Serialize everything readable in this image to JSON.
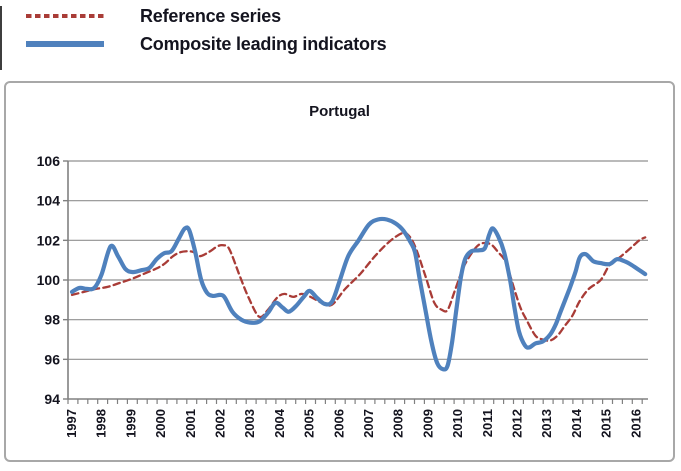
{
  "legend": {
    "items": [
      {
        "label": "Reference series",
        "color": "#a93c37",
        "style": "dashed"
      },
      {
        "label": "Composite leading indicators",
        "color": "#4f81bd",
        "style": "solid"
      }
    ]
  },
  "chart_data": {
    "type": "line",
    "title": "Portugal",
    "ylim": [
      94,
      106
    ],
    "y_ticks": [
      94,
      96,
      98,
      100,
      102,
      104,
      106
    ],
    "x_tick_years": [
      1997,
      1998,
      1999,
      2000,
      2001,
      2002,
      2003,
      2004,
      2005,
      2006,
      2007,
      2008,
      2009,
      2010,
      2011,
      2012,
      2013,
      2014,
      2015,
      2016
    ],
    "xlim": [
      1996.87,
      2016.4
    ],
    "grid": true,
    "legend_position": "top-left-outside",
    "series": [
      {
        "name": "Reference series",
        "color": "#a93c37",
        "style": "dashed",
        "points": [
          [
            1997.0,
            99.25
          ],
          [
            1997.4,
            99.4
          ],
          [
            1997.8,
            99.55
          ],
          [
            1998.2,
            99.65
          ],
          [
            1998.6,
            99.85
          ],
          [
            1999.0,
            100.05
          ],
          [
            1999.4,
            100.3
          ],
          [
            1999.8,
            100.55
          ],
          [
            2000.1,
            100.8
          ],
          [
            2000.4,
            101.2
          ],
          [
            2000.65,
            101.4
          ],
          [
            2000.9,
            101.45
          ],
          [
            2001.1,
            101.4
          ],
          [
            2001.3,
            101.2
          ],
          [
            2001.6,
            101.4
          ],
          [
            2001.9,
            101.7
          ],
          [
            2002.1,
            101.75
          ],
          [
            2002.3,
            101.55
          ],
          [
            2002.65,
            100.2
          ],
          [
            2002.95,
            99.1
          ],
          [
            2003.3,
            98.15
          ],
          [
            2003.6,
            98.5
          ],
          [
            2003.9,
            99.1
          ],
          [
            2004.15,
            99.3
          ],
          [
            2004.45,
            99.15
          ],
          [
            2004.75,
            99.3
          ],
          [
            2005.1,
            99.1
          ],
          [
            2005.4,
            98.85
          ],
          [
            2005.75,
            98.75
          ],
          [
            2006.2,
            99.55
          ],
          [
            2006.7,
            100.3
          ],
          [
            2007.2,
            101.2
          ],
          [
            2007.7,
            101.95
          ],
          [
            2008.1,
            102.35
          ],
          [
            2008.3,
            102.3
          ],
          [
            2008.55,
            101.7
          ],
          [
            2008.9,
            100.2
          ],
          [
            2009.2,
            98.85
          ],
          [
            2009.45,
            98.5
          ],
          [
            2009.65,
            98.5
          ],
          [
            2009.9,
            99.5
          ],
          [
            2010.2,
            100.7
          ],
          [
            2010.55,
            101.55
          ],
          [
            2010.8,
            101.85
          ],
          [
            2011.1,
            101.8
          ],
          [
            2011.35,
            101.4
          ],
          [
            2011.6,
            100.9
          ],
          [
            2011.9,
            99.5
          ],
          [
            2012.1,
            98.6
          ],
          [
            2012.3,
            98.0
          ],
          [
            2012.6,
            97.2
          ],
          [
            2012.85,
            97.0
          ],
          [
            2013.1,
            96.95
          ],
          [
            2013.35,
            97.2
          ],
          [
            2013.6,
            97.7
          ],
          [
            2013.85,
            98.2
          ],
          [
            2014.1,
            98.95
          ],
          [
            2014.4,
            99.55
          ],
          [
            2014.8,
            100.0
          ],
          [
            2015.1,
            100.75
          ],
          [
            2015.45,
            101.15
          ],
          [
            2015.8,
            101.6
          ],
          [
            2016.1,
            102.0
          ],
          [
            2016.3,
            102.15
          ]
        ]
      },
      {
        "name": "Composite leading indicators",
        "color": "#4f81bd",
        "style": "solid",
        "points": [
          [
            1997.0,
            99.4
          ],
          [
            1997.25,
            99.6
          ],
          [
            1997.5,
            99.55
          ],
          [
            1997.75,
            99.6
          ],
          [
            1998.0,
            100.3
          ],
          [
            1998.3,
            101.7
          ],
          [
            1998.55,
            101.2
          ],
          [
            1998.8,
            100.55
          ],
          [
            1999.05,
            100.4
          ],
          [
            1999.35,
            100.5
          ],
          [
            1999.6,
            100.6
          ],
          [
            1999.85,
            101.05
          ],
          [
            2000.1,
            101.35
          ],
          [
            2000.35,
            101.45
          ],
          [
            2000.6,
            102.1
          ],
          [
            2000.8,
            102.6
          ],
          [
            2000.95,
            102.5
          ],
          [
            2001.15,
            101.4
          ],
          [
            2001.35,
            100.0
          ],
          [
            2001.55,
            99.35
          ],
          [
            2001.75,
            99.2
          ],
          [
            2002.0,
            99.25
          ],
          [
            2002.15,
            99.1
          ],
          [
            2002.4,
            98.4
          ],
          [
            2002.7,
            98.0
          ],
          [
            2003.0,
            97.85
          ],
          [
            2003.3,
            97.9
          ],
          [
            2003.6,
            98.35
          ],
          [
            2003.85,
            98.85
          ],
          [
            2004.1,
            98.6
          ],
          [
            2004.3,
            98.4
          ],
          [
            2004.55,
            98.7
          ],
          [
            2004.8,
            99.15
          ],
          [
            2005.0,
            99.45
          ],
          [
            2005.25,
            99.1
          ],
          [
            2005.5,
            98.8
          ],
          [
            2005.75,
            98.9
          ],
          [
            2006.0,
            99.9
          ],
          [
            2006.3,
            101.2
          ],
          [
            2006.65,
            102.0
          ],
          [
            2007.0,
            102.8
          ],
          [
            2007.3,
            103.05
          ],
          [
            2007.6,
            103.05
          ],
          [
            2007.9,
            102.85
          ],
          [
            2008.15,
            102.5
          ],
          [
            2008.4,
            101.9
          ],
          [
            2008.55,
            101.4
          ],
          [
            2008.7,
            100.1
          ],
          [
            2008.9,
            98.5
          ],
          [
            2009.1,
            96.9
          ],
          [
            2009.3,
            95.8
          ],
          [
            2009.5,
            95.5
          ],
          [
            2009.65,
            95.7
          ],
          [
            2009.8,
            96.9
          ],
          [
            2009.95,
            98.6
          ],
          [
            2010.1,
            100.2
          ],
          [
            2010.25,
            101.1
          ],
          [
            2010.45,
            101.45
          ],
          [
            2010.7,
            101.5
          ],
          [
            2010.9,
            101.6
          ],
          [
            2011.05,
            102.3
          ],
          [
            2011.17,
            102.6
          ],
          [
            2011.35,
            102.2
          ],
          [
            2011.55,
            101.4
          ],
          [
            2011.75,
            100.0
          ],
          [
            2011.9,
            98.6
          ],
          [
            2012.05,
            97.4
          ],
          [
            2012.25,
            96.7
          ],
          [
            2012.4,
            96.6
          ],
          [
            2012.6,
            96.8
          ],
          [
            2012.85,
            96.9
          ],
          [
            2013.1,
            97.25
          ],
          [
            2013.3,
            97.8
          ],
          [
            2013.45,
            98.4
          ],
          [
            2013.75,
            99.55
          ],
          [
            2013.95,
            100.4
          ],
          [
            2014.1,
            101.15
          ],
          [
            2014.3,
            101.3
          ],
          [
            2014.55,
            100.95
          ],
          [
            2014.8,
            100.85
          ],
          [
            2015.1,
            100.8
          ],
          [
            2015.35,
            101.05
          ],
          [
            2015.6,
            100.95
          ],
          [
            2015.85,
            100.75
          ],
          [
            2016.1,
            100.5
          ],
          [
            2016.3,
            100.3
          ]
        ]
      }
    ],
    "colors": {
      "gridline": "#909090",
      "axis": "#808080",
      "text": "#14141f",
      "panel_border": "#a8a8a8"
    }
  }
}
